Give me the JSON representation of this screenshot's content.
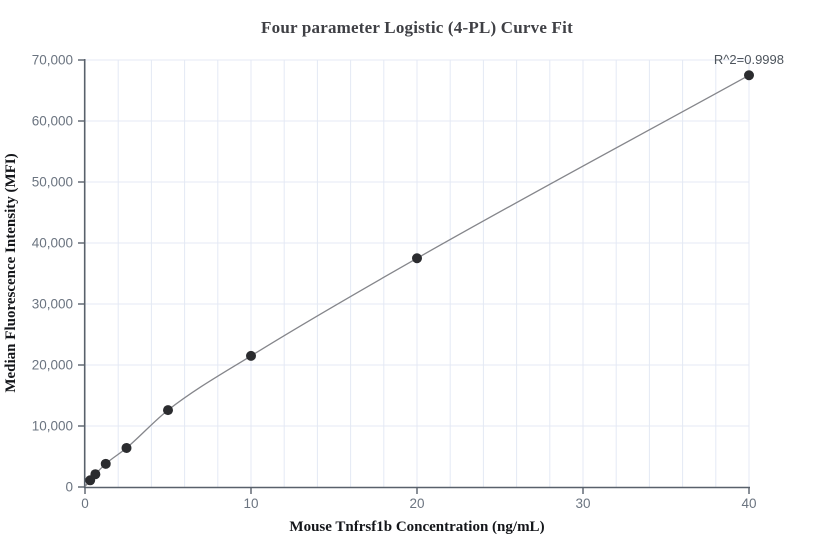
{
  "chart_data": {
    "type": "scatter",
    "title": "Four parameter Logistic (4-PL) Curve Fit",
    "xlabel": "Mouse Tnfrsf1b Concentration (ng/mL)",
    "ylabel": "Median Fluorescence Intensity (MFI)",
    "annotation": "R^2=0.9998",
    "r_squared": 0.9998,
    "x": [
      0.3125,
      0.625,
      1.25,
      2.5,
      5,
      10,
      20,
      40
    ],
    "y": [
      1100,
      2100,
      3800,
      6400,
      12600,
      21500,
      37500,
      67500
    ],
    "fit_line": true,
    "xlim": [
      0,
      40
    ],
    "ylim": [
      0,
      70000
    ],
    "x_major_ticks": [
      0,
      10,
      20,
      30,
      40
    ],
    "x_tick_labels": [
      "0",
      "10",
      "20",
      "30",
      "40"
    ],
    "x_minor_grid_step": 2,
    "y_major_ticks": [
      0,
      10000,
      20000,
      30000,
      40000,
      50000,
      60000,
      70000
    ],
    "y_tick_labels": [
      "0",
      "10,000",
      "20,000",
      "30,000",
      "40,000",
      "50,000",
      "60,000",
      "70,000"
    ],
    "grid": true,
    "legend": "none",
    "colors": {
      "background": "#ffffff",
      "gridline": "#e4e9f4",
      "axis": "#59616b",
      "tick_label": "#6b7480",
      "curve": "#85868b",
      "point": "#2b2c2f",
      "title": "#3f4045",
      "axis_label": "#14161a",
      "annotation": "#4e555d"
    }
  }
}
